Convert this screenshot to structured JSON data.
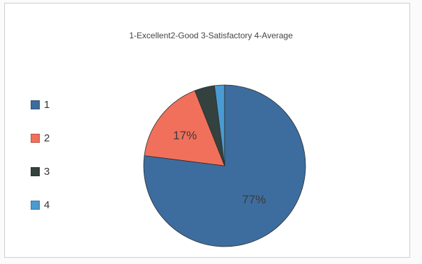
{
  "chart_data": {
    "type": "pie",
    "title": "1-Excellent2-Good 3-Satisfactory 4-Average",
    "legend_position": "left",
    "slices": [
      {
        "label": "1",
        "value": 77,
        "data_label": "77%",
        "color": "#3d6d9e"
      },
      {
        "label": "2",
        "value": 17,
        "data_label": "17%",
        "color": "#f0705c"
      },
      {
        "label": "3",
        "value": 4,
        "data_label": "",
        "color": "#34423f"
      },
      {
        "label": "4",
        "value": 2,
        "data_label": "",
        "color": "#4a9bd1"
      }
    ]
  }
}
